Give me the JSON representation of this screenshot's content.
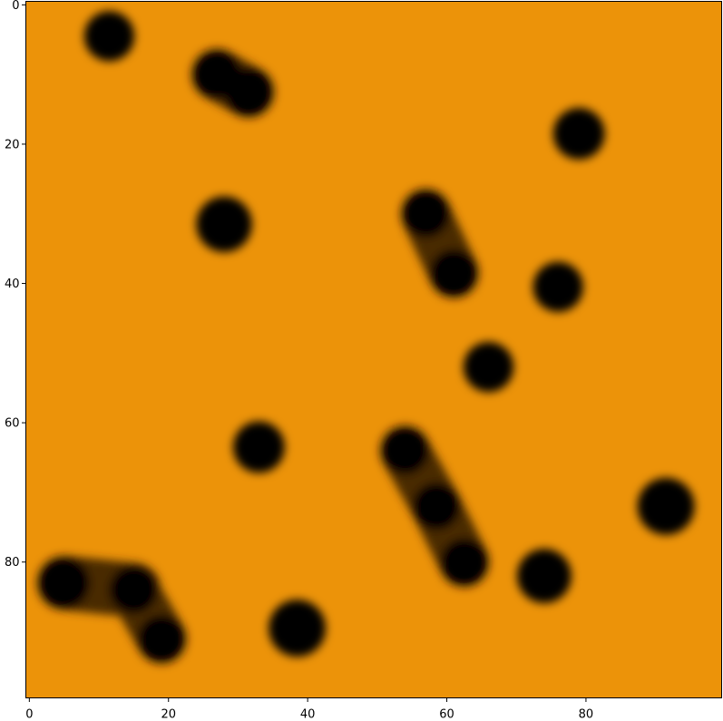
{
  "chart_data": {
    "type": "heatmap",
    "title": "",
    "xlabel": "",
    "ylabel": "",
    "image_shape": [
      100,
      100
    ],
    "xlim": [
      -0.5,
      99.5
    ],
    "ylim": [
      99.5,
      -0.5
    ],
    "y_axis_inverted": true,
    "grid": false,
    "legend": "none",
    "x_ticks": [
      0,
      20,
      40,
      60,
      80
    ],
    "y_ticks": [
      0,
      20,
      40,
      60,
      80
    ],
    "x_tick_labels": [
      "0",
      "20",
      "40",
      "60",
      "80"
    ],
    "y_tick_labels": [
      "0",
      "20",
      "40",
      "60",
      "80"
    ],
    "colors": {
      "background": "#ec9309",
      "blob": "#000000",
      "blob_halo": "#4a2c04"
    },
    "blobs": [
      {
        "shape": "disk",
        "x": 11.5,
        "y": 4.5,
        "radius": 3.6
      },
      {
        "shape": "capsule",
        "x1": 27,
        "y1": 10,
        "x2": 31.5,
        "y2": 12.5,
        "radius": 3.7
      },
      {
        "shape": "disk",
        "x": 79,
        "y": 18.5,
        "radius": 3.7
      },
      {
        "shape": "disk",
        "x": 28,
        "y": 31.5,
        "radius": 4.0
      },
      {
        "shape": "capsule",
        "x1": 57,
        "y1": 30,
        "x2": 61,
        "y2": 38.5,
        "radius": 3.6
      },
      {
        "shape": "disk",
        "x": 76,
        "y": 40.5,
        "radius": 3.6
      },
      {
        "shape": "disk",
        "x": 66,
        "y": 52,
        "radius": 3.6
      },
      {
        "shape": "disk",
        "x": 33,
        "y": 63.5,
        "radius": 3.7
      },
      {
        "shape": "capsule",
        "x1": 54,
        "y1": 64,
        "x2": 58.5,
        "y2": 72,
        "radius": 3.6
      },
      {
        "shape": "capsule",
        "x1": 58.5,
        "y1": 72,
        "x2": 62.5,
        "y2": 80,
        "radius": 3.6
      },
      {
        "shape": "disk",
        "x": 91.5,
        "y": 72,
        "radius": 4.1
      },
      {
        "shape": "capsule",
        "x1": 5,
        "y1": 83,
        "x2": 15,
        "y2": 84,
        "radius": 3.9
      },
      {
        "shape": "capsule",
        "x1": 15,
        "y1": 84,
        "x2": 19,
        "y2": 91,
        "radius": 3.6
      },
      {
        "shape": "disk",
        "x": 74,
        "y": 82,
        "radius": 3.9
      },
      {
        "shape": "disk",
        "x": 38.5,
        "y": 89.5,
        "radius": 4.1
      }
    ]
  }
}
